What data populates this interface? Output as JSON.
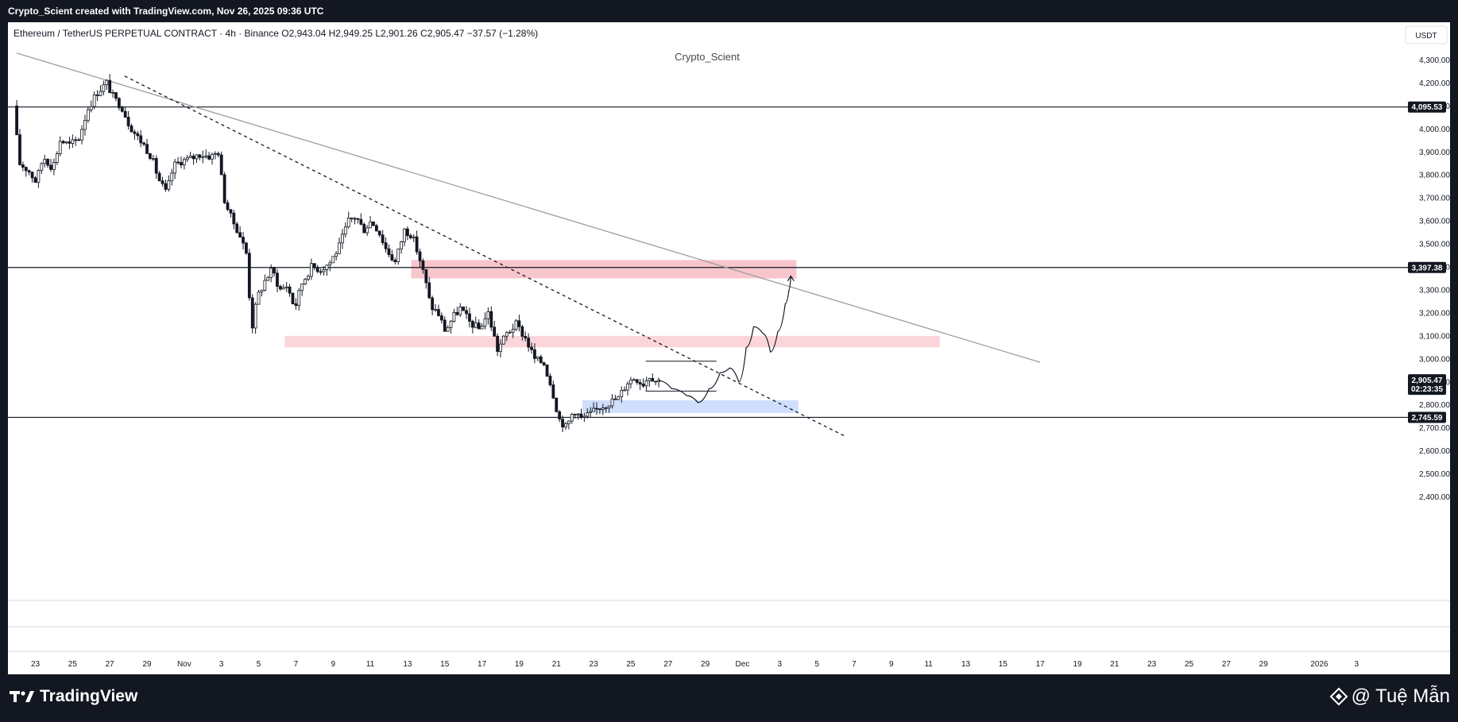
{
  "header": {
    "caption": "Crypto_Scient created with TradingView.com, Nov 26, 2025 09:36 UTC"
  },
  "chart_data": {
    "type": "candlestick",
    "symbol_line": "Ethereum / TetherUS PERPETUAL CONTRACT · 4h · Binance  O2,943.04  H2,949.25  L2,901.26  C2,905.47  −37.57 (−1.28%)",
    "watermark": "Crypto_Scient",
    "currency": "USDT",
    "y_axis": {
      "range": [
        2320,
        4360
      ],
      "ticks": [
        2400,
        2500,
        2600,
        2700,
        2800,
        2900,
        3000,
        3100,
        3200,
        3300,
        3400,
        3500,
        3600,
        3700,
        3800,
        3900,
        4000,
        4100,
        4200,
        4300
      ],
      "tick_labels": [
        "2,400.00",
        "2,500.00",
        "2,600.00",
        "2,700.00",
        "2,800.00",
        "2,900.00",
        "3,000.00",
        "3,100.00",
        "3,200.00",
        "3,300.00",
        "3,400.00",
        "3,500.00",
        "3,600.00",
        "3,700.00",
        "3,800.00",
        "3,900.00",
        "4,000.00",
        "4,100.00",
        "4,200.00",
        "4,300.00"
      ]
    },
    "x_axis": {
      "day_range": [
        0,
        72
      ],
      "ticks": [
        {
          "day": 1,
          "label": "23"
        },
        {
          "day": 3,
          "label": "25"
        },
        {
          "day": 5,
          "label": "27"
        },
        {
          "day": 7,
          "label": "29"
        },
        {
          "day": 9,
          "label": "Nov"
        },
        {
          "day": 11,
          "label": "3"
        },
        {
          "day": 13,
          "label": "5"
        },
        {
          "day": 15,
          "label": "7"
        },
        {
          "day": 17,
          "label": "9"
        },
        {
          "day": 19,
          "label": "11"
        },
        {
          "day": 21,
          "label": "13"
        },
        {
          "day": 23,
          "label": "15"
        },
        {
          "day": 25,
          "label": "17"
        },
        {
          "day": 27,
          "label": "19"
        },
        {
          "day": 29,
          "label": "21"
        },
        {
          "day": 31,
          "label": "23"
        },
        {
          "day": 33,
          "label": "25"
        },
        {
          "day": 35,
          "label": "27"
        },
        {
          "day": 37,
          "label": "29"
        },
        {
          "day": 39,
          "label": "Dec"
        },
        {
          "day": 41,
          "label": "3"
        },
        {
          "day": 43,
          "label": "5"
        },
        {
          "day": 45,
          "label": "7"
        },
        {
          "day": 47,
          "label": "9"
        },
        {
          "day": 49,
          "label": "11"
        },
        {
          "day": 51,
          "label": "13"
        },
        {
          "day": 53,
          "label": "15"
        },
        {
          "day": 55,
          "label": "17"
        },
        {
          "day": 57,
          "label": "19"
        },
        {
          "day": 59,
          "label": "21"
        },
        {
          "day": 61,
          "label": "23"
        },
        {
          "day": 63,
          "label": "25"
        },
        {
          "day": 65,
          "label": "27"
        },
        {
          "day": 67,
          "label": "29"
        },
        {
          "day": 70,
          "label": "2026"
        },
        {
          "day": 72,
          "label": "3"
        }
      ]
    },
    "horizontal_levels": [
      {
        "price": 4095.53,
        "label": "4,095.53"
      },
      {
        "price": 3397.38,
        "label": "3,397.38"
      },
      {
        "price": 2745.59,
        "label": "2,745.59"
      }
    ],
    "last_price": {
      "price": 2905.47,
      "label": "2,905.47",
      "countdown": "02:23:35"
    },
    "price_path": [
      [
        0.0,
        4100
      ],
      [
        0.3,
        3850
      ],
      [
        0.8,
        3820
      ],
      [
        1.2,
        3770
      ],
      [
        1.6,
        3880
      ],
      [
        2.1,
        3830
      ],
      [
        2.5,
        3950
      ],
      [
        3.0,
        3930
      ],
      [
        3.5,
        3960
      ],
      [
        4.0,
        4090
      ],
      [
        4.5,
        4160
      ],
      [
        5.0,
        4200
      ],
      [
        5.4,
        4130
      ],
      [
        5.8,
        4100
      ],
      [
        6.2,
        4020
      ],
      [
        6.6,
        3970
      ],
      [
        7.0,
        3930
      ],
      [
        7.4,
        3880
      ],
      [
        7.8,
        3780
      ],
      [
        8.2,
        3720
      ],
      [
        8.6,
        3840
      ],
      [
        9.0,
        3860
      ],
      [
        9.5,
        3870
      ],
      [
        10.0,
        3890
      ],
      [
        10.6,
        3880
      ],
      [
        11.0,
        3900
      ],
      [
        11.3,
        3700
      ],
      [
        11.7,
        3610
      ],
      [
        12.1,
        3550
      ],
      [
        12.5,
        3460
      ],
      [
        12.8,
        3130
      ],
      [
        13.1,
        3270
      ],
      [
        13.5,
        3340
      ],
      [
        13.9,
        3390
      ],
      [
        14.3,
        3300
      ],
      [
        14.7,
        3320
      ],
      [
        15.1,
        3220
      ],
      [
        15.5,
        3330
      ],
      [
        16.0,
        3400
      ],
      [
        16.5,
        3390
      ],
      [
        17.0,
        3420
      ],
      [
        17.5,
        3490
      ],
      [
        18.0,
        3600
      ],
      [
        18.4,
        3620
      ],
      [
        18.8,
        3560
      ],
      [
        19.2,
        3600
      ],
      [
        19.6,
        3560
      ],
      [
        20.0,
        3480
      ],
      [
        20.5,
        3420
      ],
      [
        21.0,
        3560
      ],
      [
        21.4,
        3540
      ],
      [
        21.8,
        3440
      ],
      [
        22.1,
        3350
      ],
      [
        22.4,
        3230
      ],
      [
        22.8,
        3200
      ],
      [
        23.2,
        3120
      ],
      [
        23.6,
        3180
      ],
      [
        24.0,
        3220
      ],
      [
        24.5,
        3160
      ],
      [
        25.0,
        3130
      ],
      [
        25.5,
        3200
      ],
      [
        26.0,
        3040
      ],
      [
        26.5,
        3110
      ],
      [
        27.0,
        3150
      ],
      [
        27.5,
        3090
      ],
      [
        28.0,
        3000
      ],
      [
        28.5,
        2980
      ],
      [
        28.9,
        2880
      ],
      [
        29.3,
        2740
      ],
      [
        29.7,
        2700
      ],
      [
        30.1,
        2780
      ],
      [
        30.5,
        2740
      ],
      [
        31.0,
        2760
      ],
      [
        31.5,
        2790
      ],
      [
        32.0,
        2810
      ],
      [
        32.5,
        2830
      ],
      [
        33.0,
        2900
      ],
      [
        33.4,
        2920
      ],
      [
        33.8,
        2890
      ],
      [
        34.2,
        2930
      ],
      [
        34.5,
        2905
      ]
    ],
    "zones": [
      {
        "name": "resistance-zone-upper",
        "color": "#f7c6cc",
        "day_start": 21.2,
        "day_end": 41.9,
        "price_low": 3350,
        "price_high": 3430
      },
      {
        "name": "resistance-zone-middle",
        "color": "#fbd5da",
        "day_start": 14.4,
        "day_end": 49.6,
        "price_low": 3050,
        "price_high": 3100
      },
      {
        "name": "demand-zone",
        "color": "#cfdefc",
        "day_start": 30.4,
        "day_end": 42.0,
        "price_low": 2765,
        "price_high": 2820
      }
    ],
    "trendlines": [
      {
        "name": "long-trendline",
        "style": "solid",
        "color": "#9e9e9e",
        "from": [
          0.0,
          4330
        ],
        "to": [
          55.0,
          2985
        ]
      },
      {
        "name": "dotted-trendline",
        "style": "dashed",
        "color": "#131722",
        "from": [
          5.8,
          4230
        ],
        "to": [
          44.6,
          2660
        ]
      }
    ],
    "projection_path": [
      [
        34.5,
        2905
      ],
      [
        35.2,
        2870
      ],
      [
        36.0,
        2840
      ],
      [
        36.6,
        2810
      ],
      [
        37.2,
        2870
      ],
      [
        37.8,
        2940
      ],
      [
        38.3,
        2960
      ],
      [
        38.8,
        2900
      ],
      [
        39.2,
        3050
      ],
      [
        39.6,
        3140
      ],
      [
        40.1,
        3110
      ],
      [
        40.5,
        3030
      ],
      [
        40.9,
        3120
      ],
      [
        41.3,
        3240
      ],
      [
        41.5,
        3300
      ],
      [
        41.6,
        3360
      ]
    ],
    "range_box": {
      "day_start": 33.8,
      "day_end": 37.6,
      "price_low": 2860,
      "price_high": 2990
    }
  },
  "footer": {
    "brand": "TradingView",
    "credit": "@ Tuệ Mẫn"
  },
  "colors": {
    "background": "#ffffff",
    "frame": "#131722",
    "candle_up": "#ffffff",
    "candle_down": "#131722"
  }
}
